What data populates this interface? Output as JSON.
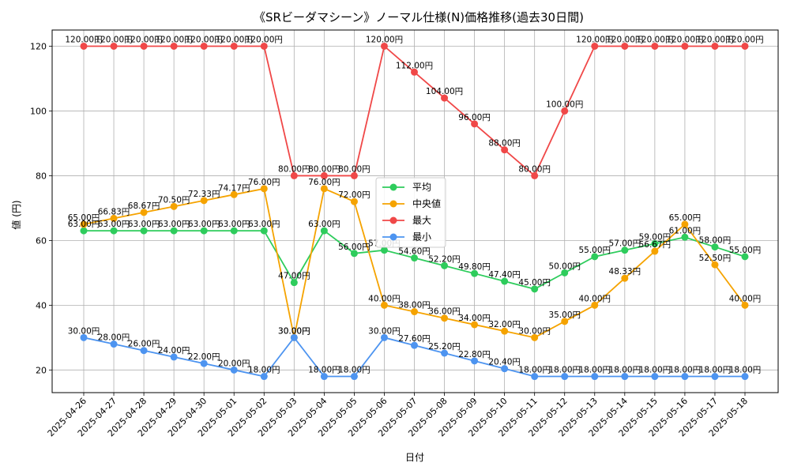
{
  "chart_data": {
    "type": "line",
    "title": "《SRビーダマシーン》ノーマル仕様(N)価格推移(過去30日間)",
    "xlabel": "日付",
    "ylabel": "値 (円)",
    "ylim": [
      13,
      125
    ],
    "yticks": [
      20,
      40,
      60,
      80,
      100,
      120
    ],
    "grid": true,
    "legend_position": "center",
    "label_suffix": "円",
    "categories": [
      "2025-04-26",
      "2025-04-27",
      "2025-04-28",
      "2025-04-29",
      "2025-04-30",
      "2025-05-01",
      "2025-05-02",
      "2025-05-03",
      "2025-05-04",
      "2025-05-05",
      "2025-05-06",
      "2025-05-07",
      "2025-05-08",
      "2025-05-09",
      "2025-05-10",
      "2025-05-11",
      "2025-05-12",
      "2025-05-13",
      "2025-05-14",
      "2025-05-15",
      "2025-05-16",
      "2025-05-17",
      "2025-05-18"
    ],
    "series": [
      {
        "name": "平均",
        "color": "#2ecc5c",
        "values": [
          63,
          63,
          63,
          63,
          63,
          63,
          63,
          47,
          63,
          56,
          57,
          54.6,
          52.2,
          49.8,
          47.4,
          45,
          50,
          55,
          57,
          59,
          61,
          58,
          55
        ]
      },
      {
        "name": "中央値",
        "color": "#f5a300",
        "values": [
          65,
          66.83,
          68.67,
          70.5,
          72.33,
          74.17,
          76,
          30,
          76,
          72,
          40,
          38,
          36,
          34,
          32,
          30,
          35,
          40,
          48.33,
          56.67,
          65,
          52.5,
          40
        ]
      },
      {
        "name": "最大",
        "color": "#f04848",
        "values": [
          120,
          120,
          120,
          120,
          120,
          120,
          120,
          80,
          80,
          80,
          120,
          112,
          104,
          96,
          88,
          80,
          100,
          120,
          120,
          120,
          120,
          120,
          120
        ]
      },
      {
        "name": "最小",
        "color": "#4d94f0",
        "values": [
          30,
          28,
          26,
          24,
          22,
          20,
          18,
          30,
          18,
          18,
          30,
          27.6,
          25.2,
          22.8,
          20.4,
          18,
          18,
          18,
          18,
          18,
          18,
          18,
          18
        ]
      }
    ]
  }
}
